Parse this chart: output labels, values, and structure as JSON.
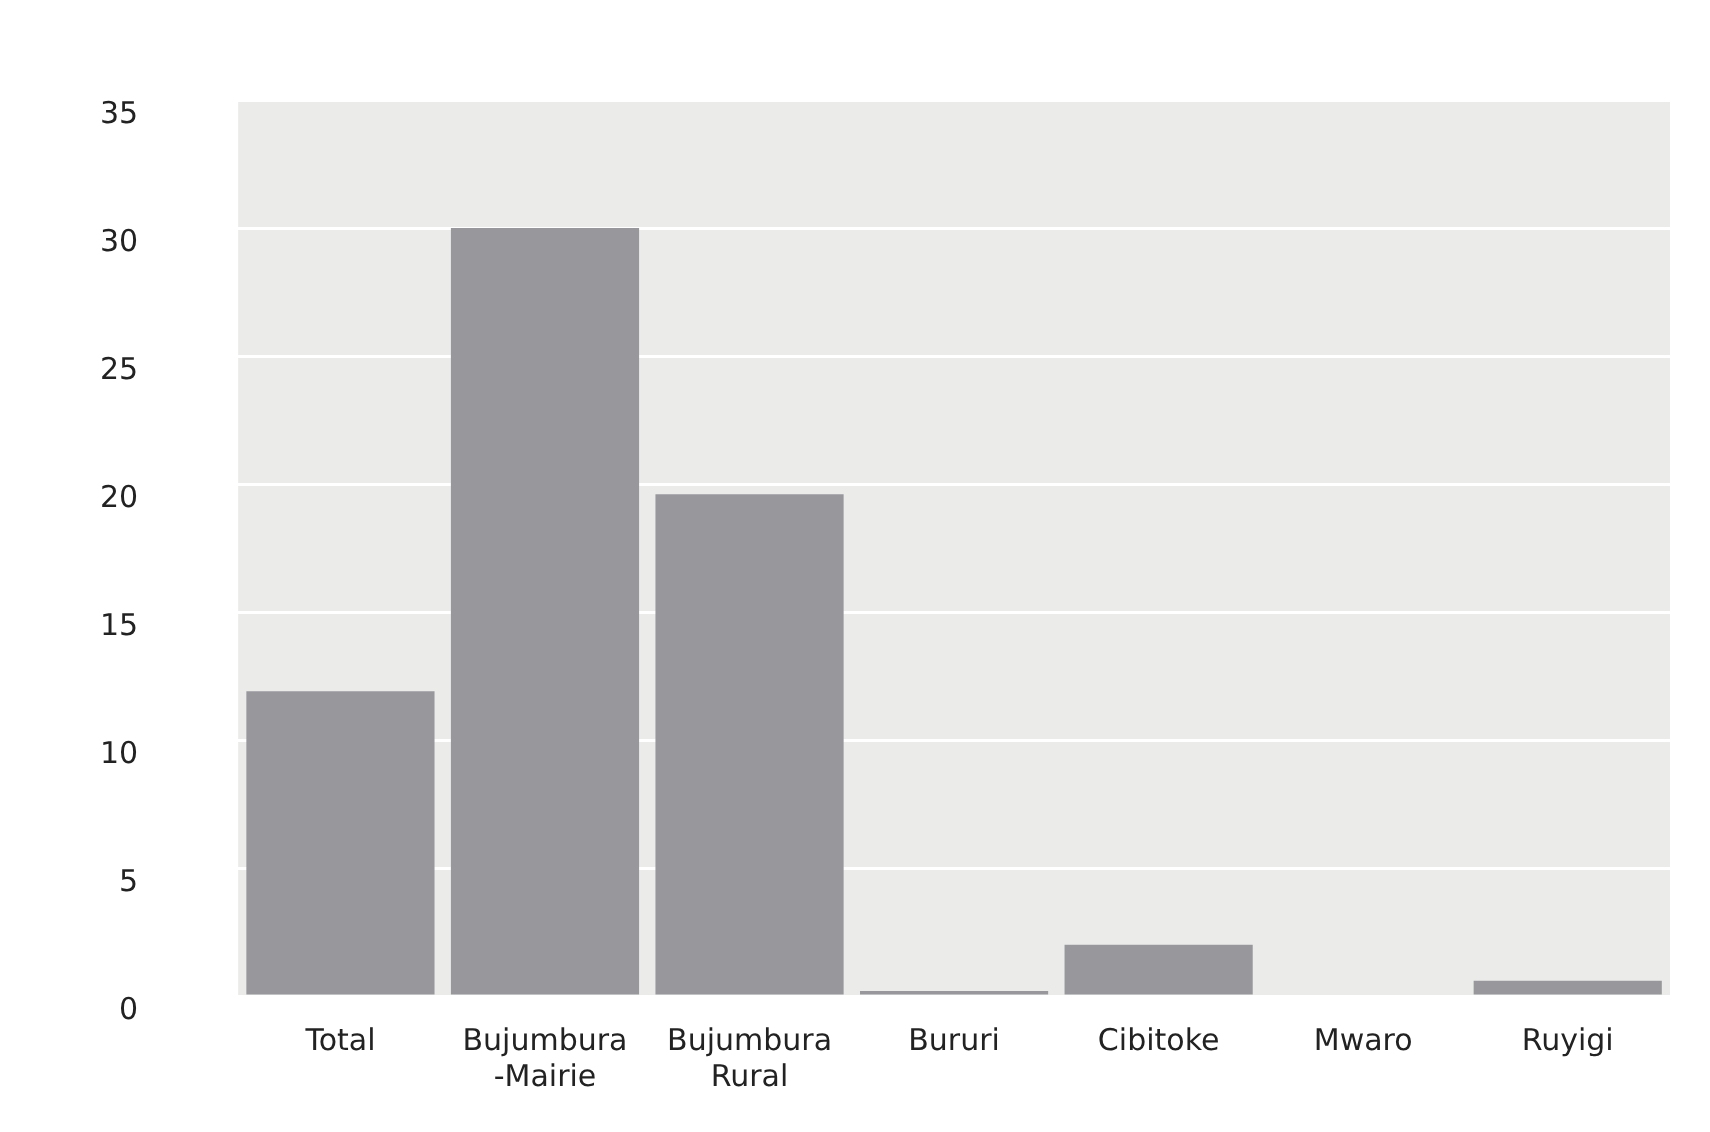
{
  "chart_data": {
    "type": "bar",
    "categories": [
      "Total",
      "Bujumbura -Mairie",
      "Bujumbura Rural",
      "Bururi",
      "Cibitoke",
      "Mwaro",
      "Ruyigi"
    ],
    "values": [
      11.9,
      30.0,
      19.6,
      0.2,
      2.0,
      0,
      0.6
    ],
    "color": "#98979c",
    "ylim": [
      0,
      35
    ],
    "yticks": [
      0,
      5,
      10,
      15,
      20,
      25,
      30,
      35
    ],
    "grid": "y",
    "legend": false
  }
}
